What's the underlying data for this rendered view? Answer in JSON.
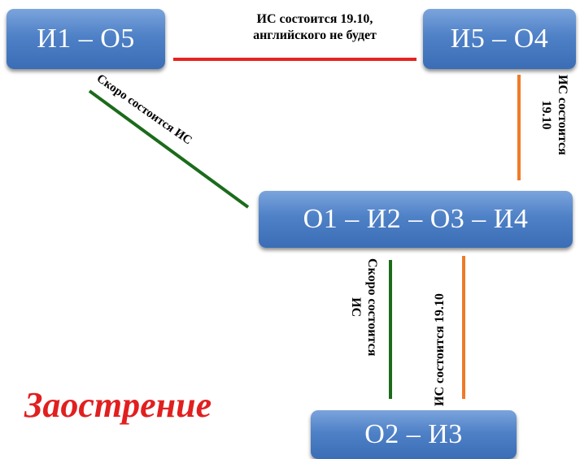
{
  "nodes": {
    "n1": "И1 – О5",
    "n2": "И5 – О4",
    "n3": "О1 – И2 – О3 – И4",
    "n4": "О2 –  И3"
  },
  "edge_labels": {
    "top_line1": "ИС состоится  19.10,",
    "top_line2": "английского не будет",
    "diagonal": "Скоро состоится  ИС",
    "right_line1": "ИС состоится",
    "right_line2": "19.10",
    "mid1_line1": "Скоро состоится",
    "mid1_line2": "ИС",
    "mid2": "ИС состоится   19.10"
  },
  "title": "Заострение",
  "colors": {
    "red_edge": "#e8231f",
    "green_edge": "#1b6b1b",
    "orange_edge": "#f07a28",
    "node_fill": "#4f81c7",
    "title": "#e11f1f"
  }
}
